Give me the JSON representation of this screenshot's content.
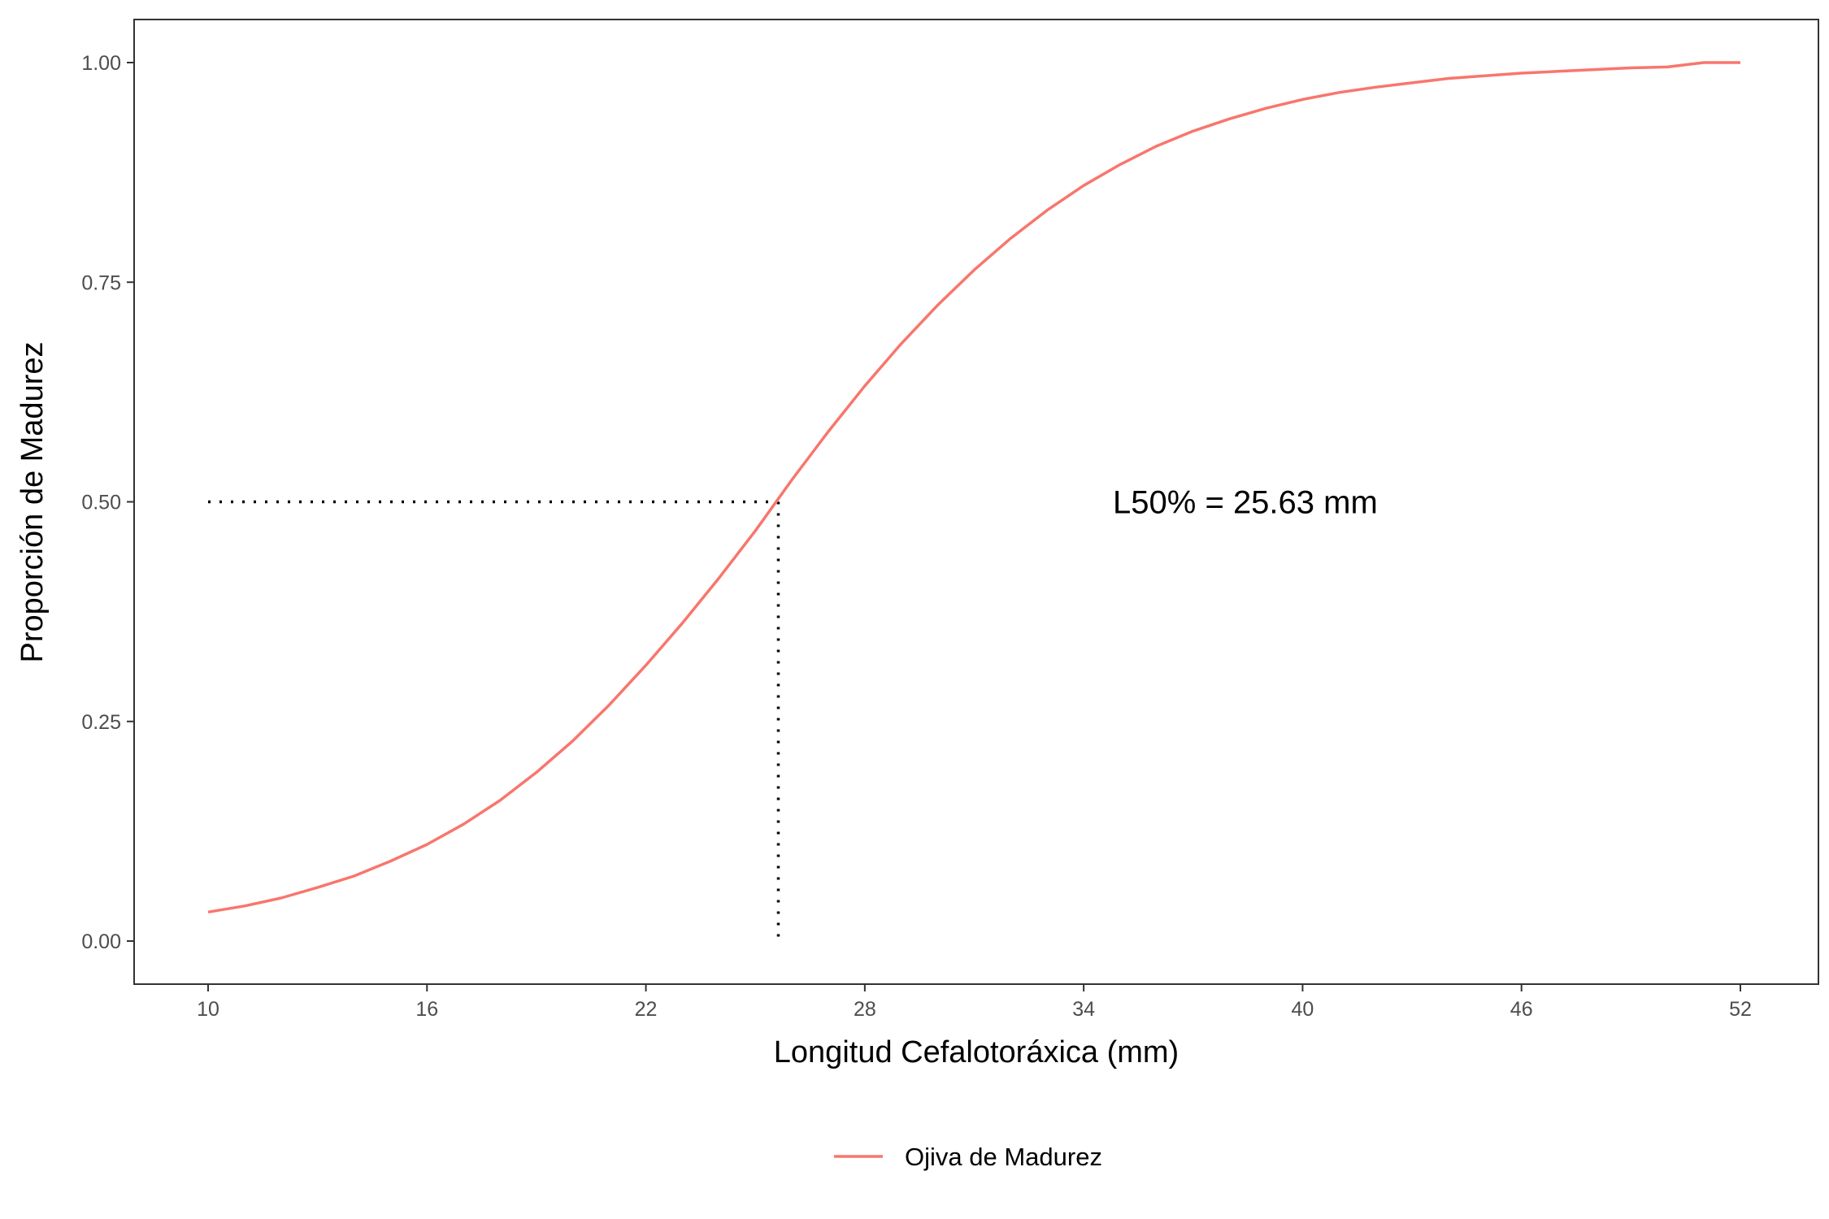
{
  "chart_data": {
    "type": "line",
    "title": "",
    "xlabel": "Longitud Cefalotoráxica (mm)",
    "ylabel": "Proporción de Madurez",
    "xlim": [
      10,
      52
    ],
    "ylim": [
      0,
      1
    ],
    "x_ticks": [
      10,
      16,
      22,
      28,
      34,
      40,
      46,
      52
    ],
    "x_tick_labels": [
      "10",
      "16",
      "22",
      "28",
      "34",
      "40",
      "46",
      "52"
    ],
    "y_ticks": [
      0,
      0.25,
      0.5,
      0.75,
      1
    ],
    "y_tick_labels": [
      "0.00",
      "0.25",
      "0.50",
      "0.75",
      "1.00"
    ],
    "grid": false,
    "legend_position": "bottom",
    "series": [
      {
        "name": "Ojiva de Madurez",
        "color": "#F8766D",
        "x": [
          10,
          11,
          12,
          13,
          14,
          15,
          16,
          17,
          18,
          19,
          20,
          21,
          22,
          23,
          24,
          25,
          26,
          27,
          28,
          29,
          30,
          31,
          32,
          33,
          34,
          35,
          36,
          37,
          38,
          39,
          40,
          41,
          42,
          43,
          44,
          45,
          46,
          47,
          48,
          49,
          50,
          51,
          52
        ],
        "y": [
          0.033,
          0.04,
          0.049,
          0.061,
          0.074,
          0.091,
          0.11,
          0.133,
          0.16,
          0.192,
          0.228,
          0.269,
          0.314,
          0.362,
          0.413,
          0.467,
          0.525,
          0.58,
          0.632,
          0.68,
          0.724,
          0.764,
          0.8,
          0.832,
          0.86,
          0.884,
          0.905,
          0.922,
          0.936,
          0.948,
          0.958,
          0.966,
          0.972,
          0.977,
          0.982,
          0.985,
          0.988,
          0.99,
          0.992,
          0.994,
          0.995,
          1.0,
          1.0
        ]
      }
    ],
    "reference_lines": {
      "x_value": 25.63,
      "y_value": 0.5,
      "style": "dotted"
    },
    "annotation": {
      "text": "L50% = 25.63 mm",
      "x": 34.8,
      "y": 0.5
    }
  }
}
